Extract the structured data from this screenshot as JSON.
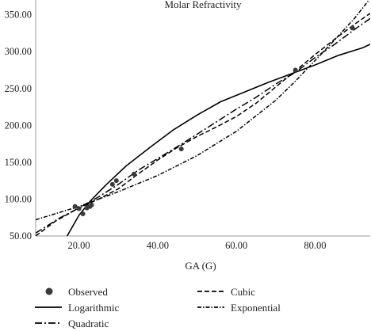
{
  "chart_data": {
    "type": "scatter",
    "title": "Molar Refractivity",
    "xlabel": "GA (G)",
    "ylabel": "",
    "xlim": [
      9,
      94
    ],
    "ylim": [
      50,
      370
    ],
    "xticks": [
      20,
      40,
      60,
      80
    ],
    "yticks": [
      50,
      100,
      150,
      200,
      250,
      300,
      350
    ],
    "xtick_labels": [
      "20.00",
      "40.00",
      "60.00",
      "80.00"
    ],
    "ytick_labels": [
      "50.00",
      "100.00",
      "150.00",
      "200.00",
      "250.00",
      "300.00",
      "350.00"
    ],
    "grid": false,
    "legend_position": "bottom",
    "observed": {
      "name": "Observed",
      "x": [
        19.0,
        20.0,
        21.0,
        22.0,
        22.8,
        23.2,
        28.5,
        29.5,
        34.0,
        46.0,
        75.0,
        89.5
      ],
      "y": [
        90,
        87,
        80,
        88,
        90,
        92,
        120,
        125,
        134,
        168,
        275,
        332
      ]
    },
    "series": [
      {
        "name": "Logarithmic",
        "style": "solid",
        "x": [
          17,
          20,
          23,
          27,
          32,
          38,
          44,
          50,
          56,
          62,
          68,
          74,
          80,
          86,
          92,
          94
        ],
        "y": [
          50,
          78,
          98,
          120,
          145,
          170,
          194,
          214,
          232,
          245,
          258,
          270,
          282,
          295,
          305,
          310
        ]
      },
      {
        "name": "Cubic",
        "style": "dashed",
        "x": [
          9,
          14,
          20,
          25,
          30,
          35,
          40,
          45,
          50,
          55,
          60,
          65,
          70,
          75,
          80,
          85,
          90,
          94
        ],
        "y": [
          50,
          70,
          88,
          100,
          114,
          134,
          153,
          170,
          185,
          198,
          212,
          230,
          252,
          274,
          296,
          317,
          337,
          352
        ]
      },
      {
        "name": "Exponential",
        "style": "dashdot-short",
        "x": [
          9,
          20,
          30,
          40,
          50,
          60,
          70,
          75,
          80,
          85,
          90,
          94
        ],
        "y": [
          72,
          90,
          110,
          132,
          159,
          192,
          234,
          260,
          288,
          316,
          345,
          372
        ]
      },
      {
        "name": "Quadratic",
        "style": "dashdot-long",
        "x": [
          9,
          15,
          20,
          25,
          30,
          35,
          40,
          45,
          50,
          55,
          60,
          65,
          70,
          75,
          80,
          85,
          90,
          94
        ],
        "y": [
          54,
          74,
          88,
          103,
          120,
          139,
          155,
          171,
          188,
          205,
          222,
          238,
          256,
          272,
          292,
          310,
          330,
          345
        ]
      }
    ],
    "legend": [
      {
        "name": "Observed",
        "style": "marker"
      },
      {
        "name": "Cubic",
        "style": "dashed"
      },
      {
        "name": "Logarithmic",
        "style": "solid"
      },
      {
        "name": "Exponential",
        "style": "dashdot-short"
      },
      {
        "name": "Quadratic",
        "style": "dashdot-long"
      }
    ],
    "colors": {
      "line": "#000000",
      "marker": "#3a3a3a",
      "axis": "#9a9a9a"
    }
  }
}
